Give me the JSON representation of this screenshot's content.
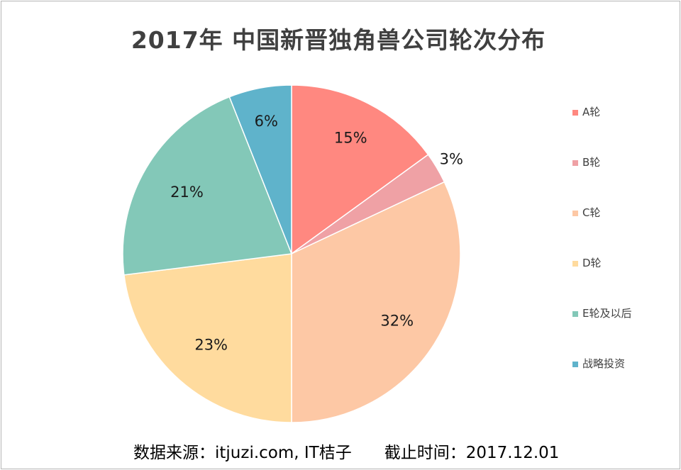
{
  "chart_data": {
    "type": "pie",
    "title": "2017年 中国新晋独角兽公司轮次分布",
    "categories": [
      "A轮",
      "B轮",
      "C轮",
      "D轮",
      "E轮及以后",
      "战略投资"
    ],
    "values": [
      15,
      3,
      32,
      23,
      21,
      6
    ],
    "value_labels": [
      "15%",
      "3%",
      "32%",
      "23%",
      "21%",
      "6%"
    ],
    "colors": [
      "#FF8880",
      "#EFA1A5",
      "#FDC8A5",
      "#FFDB9E",
      "#83C8B8",
      "#5FB3CB"
    ],
    "legend_position": "right",
    "start_angle": "12 o'clock",
    "direction": "clockwise"
  },
  "footer": {
    "source": "数据来源：itjuzi.com, IT桔子",
    "cutoff": "截止时间：2017.12.01"
  }
}
